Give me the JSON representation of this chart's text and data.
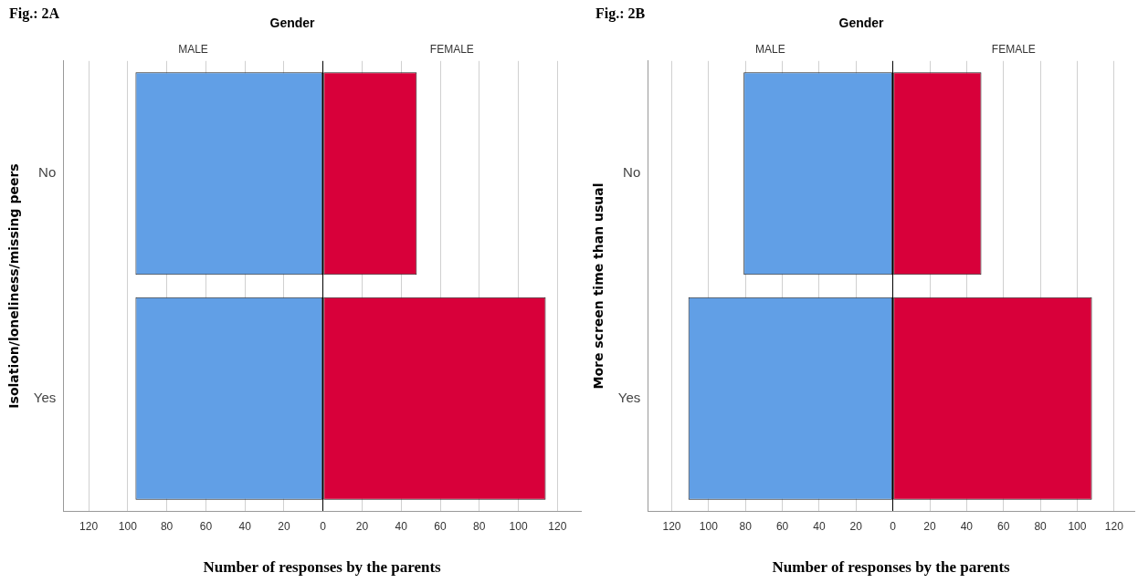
{
  "chart_data": [
    {
      "type": "bar",
      "orientation": "horizontal",
      "stacked": true,
      "title": "Gender",
      "annotations": [
        "Fig.: 2A"
      ],
      "xlabel": "Number of responses by the parents",
      "ylabel": "Isolation/loneliness/missing peers",
      "categories": [
        "No",
        "Yes"
      ],
      "series": [
        {
          "name": "MALE",
          "color": "#619fe6",
          "values": [
            -96,
            -96
          ]
        },
        {
          "name": "FEMALE",
          "color": "#d8003a",
          "values": [
            48,
            114
          ]
        }
      ],
      "xlim": [
        -133,
        132
      ],
      "xticks": [
        {
          "value": -120,
          "label": "120"
        },
        {
          "value": -100,
          "label": "100"
        },
        {
          "value": -80,
          "label": "80"
        },
        {
          "value": -60,
          "label": "60"
        },
        {
          "value": -40,
          "label": "40"
        },
        {
          "value": -20,
          "label": "20"
        },
        0,
        20,
        40,
        60,
        80,
        100,
        120
      ],
      "grid": "x",
      "legend": false
    },
    {
      "type": "bar",
      "orientation": "horizontal",
      "stacked": true,
      "title": "Gender",
      "annotations": [
        "Fig.: 2B"
      ],
      "xlabel": "Number of responses by the parents",
      "ylabel": "More screen time than usual",
      "categories": [
        "No",
        "Yes"
      ],
      "series": [
        {
          "name": "MALE",
          "color": "#619fe6",
          "values": [
            -81,
            -111
          ]
        },
        {
          "name": "FEMALE",
          "color": "#d8003a",
          "values": [
            48,
            108
          ]
        }
      ],
      "xlim": [
        -133,
        131
      ],
      "xticks": [
        {
          "value": -120,
          "label": "120"
        },
        {
          "value": -100,
          "label": "100"
        },
        {
          "value": -80,
          "label": "80"
        },
        {
          "value": -60,
          "label": "60"
        },
        {
          "value": -40,
          "label": "40"
        },
        {
          "value": -20,
          "label": "20"
        },
        0,
        20,
        40,
        60,
        80,
        100,
        120
      ],
      "grid": "x",
      "legend": false
    }
  ]
}
